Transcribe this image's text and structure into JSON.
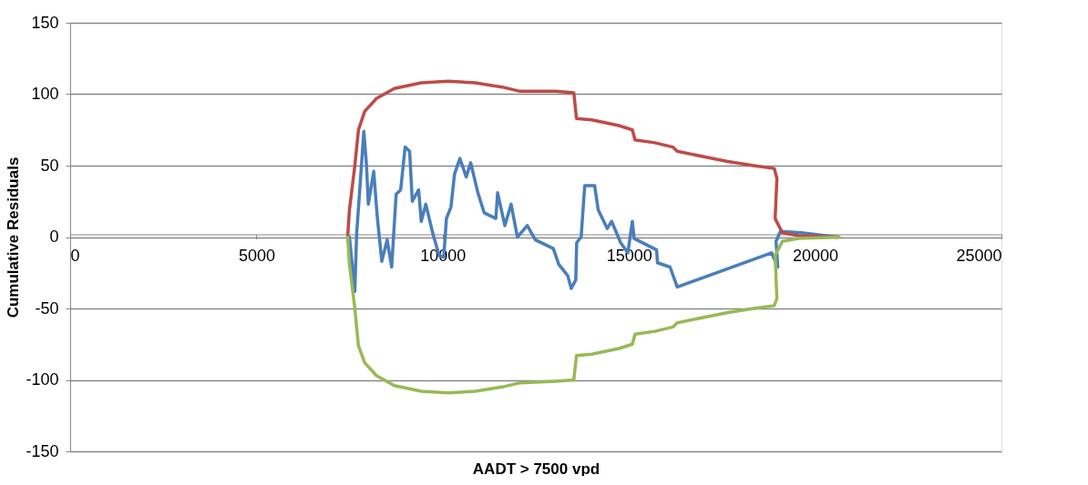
{
  "chart_data": {
    "type": "line",
    "xlabel": "AADT > 7500 vpd",
    "ylabel": "Cumulative Residuals",
    "xlim": [
      0,
      25000
    ],
    "xticks": [
      0,
      5000,
      10000,
      15000,
      20000,
      25000
    ],
    "ylim": [
      -150,
      150
    ],
    "yticks": [
      -150,
      -100,
      -50,
      0,
      50,
      100,
      150
    ],
    "grid": "y",
    "legend": false,
    "marker": "none",
    "line_style": "solid",
    "series": [
      {
        "color": "#4a7ebb",
        "x": [
          7450,
          7497,
          7642,
          7690,
          7787,
          7883,
          7956,
          8004,
          8149,
          8245,
          8366,
          8510,
          8631,
          8751,
          8872,
          8992,
          9113,
          9185,
          9354,
          9426,
          9547,
          9740,
          9908,
          10029,
          10101,
          10222,
          10318,
          10463,
          10632,
          10752,
          10945,
          11114,
          11427,
          11475,
          11668,
          11837,
          12006,
          12271,
          12488,
          12970,
          13115,
          13356,
          13452,
          13573,
          13597,
          13717,
          13814,
          14079,
          14176,
          14417,
          14537,
          14778,
          14971,
          15043,
          15092,
          15140,
          15743,
          15767,
          16104,
          16297,
          18829,
          18997,
          18949,
          19069,
          19624,
          20588
        ],
        "values": [
          0,
          0,
          -38,
          2,
          38,
          74,
          50,
          23,
          46,
          14,
          -17,
          -2,
          -21,
          30,
          33,
          63,
          60,
          25,
          33,
          11,
          23,
          2,
          -13,
          -14,
          13,
          21,
          44,
          55,
          42,
          52,
          31,
          17,
          13,
          31,
          8,
          23,
          0,
          8,
          -2,
          -8,
          -19,
          -27,
          -36,
          -30,
          -4,
          0,
          36,
          36,
          19,
          6,
          11,
          -4,
          -11,
          2,
          11,
          -1,
          -9,
          -18,
          -21,
          -35,
          -11,
          -21,
          -3,
          4,
          3,
          0
        ]
      },
      {
        "color": "#be4b48",
        "x": [
          7449,
          7497,
          7642,
          7739,
          7907,
          8221,
          8703,
          9426,
          10150,
          10873,
          11596,
          12078,
          13038,
          13520,
          13592,
          14003,
          14732,
          15092,
          15164,
          15694,
          16177,
          16297,
          17623,
          18346,
          18901,
          18973,
          18925,
          19118,
          19552,
          20637
        ],
        "values": [
          0,
          19,
          50,
          75,
          88,
          97,
          104,
          108,
          109,
          108,
          105,
          102,
          102,
          101,
          83,
          82,
          78,
          75,
          68,
          66,
          63,
          60,
          53,
          50,
          48,
          41,
          13,
          3,
          1,
          0
        ]
      },
      {
        "color": "#98b954",
        "x": [
          7449,
          7497,
          7642,
          7739,
          7907,
          8221,
          8703,
          9426,
          10150,
          10873,
          11596,
          12078,
          13038,
          13520,
          13592,
          14003,
          14732,
          15092,
          15164,
          15694,
          16177,
          16297,
          17623,
          18346,
          18901,
          18973,
          18925,
          19118,
          19552,
          20637
        ],
        "values": [
          0,
          -19,
          -50,
          -76,
          -88,
          -97,
          -104,
          -108,
          -109,
          -108,
          -105,
          -102,
          -101,
          -100,
          -83,
          -82,
          -78,
          -75,
          -68,
          -66,
          -63,
          -60,
          -53,
          -50,
          -48,
          -43,
          -13,
          -3,
          -1,
          0
        ]
      }
    ]
  }
}
